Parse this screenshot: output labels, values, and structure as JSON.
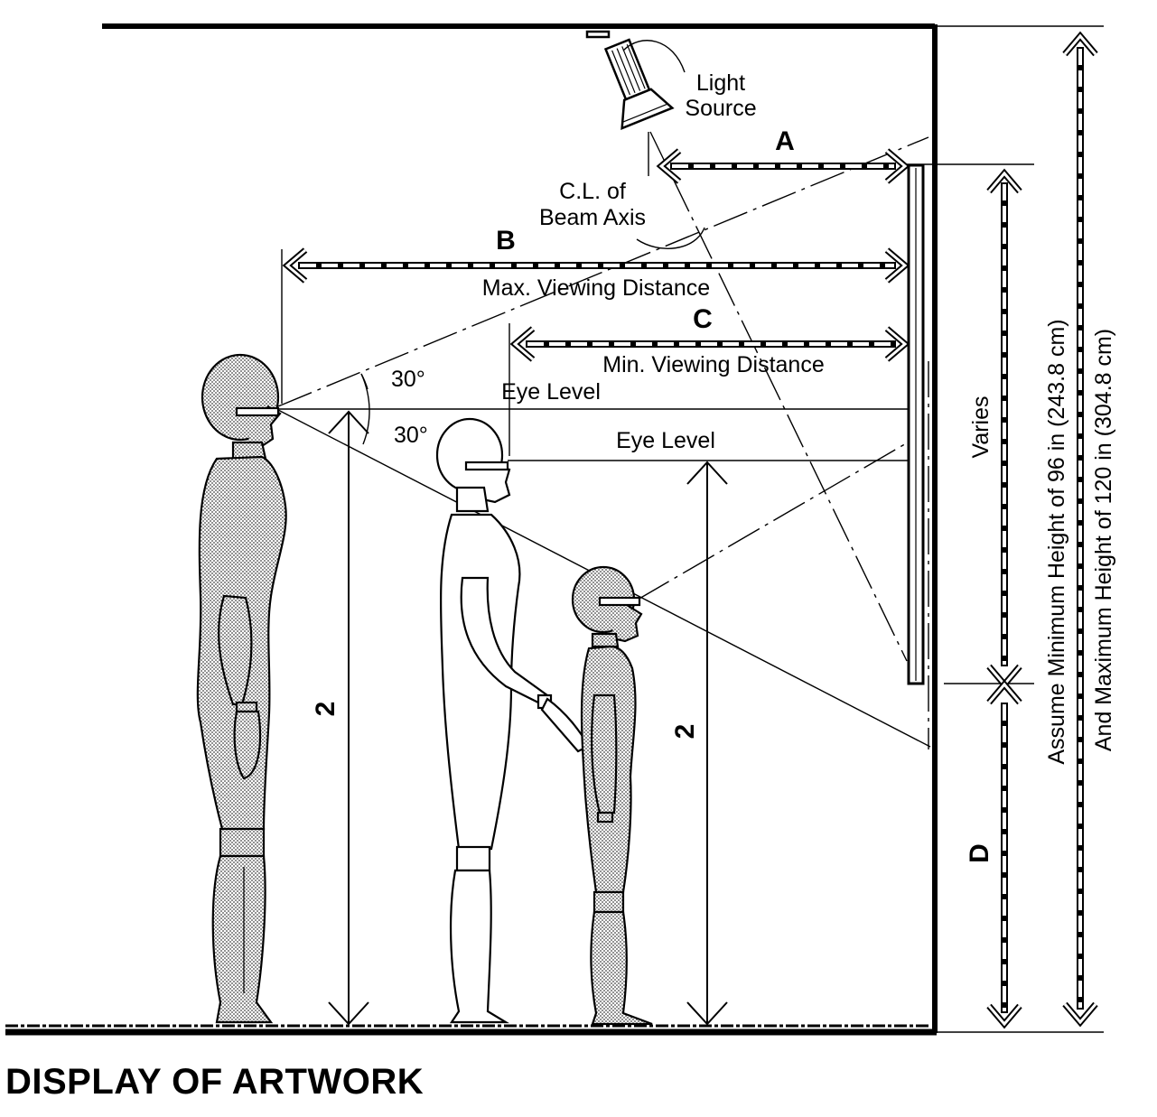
{
  "title": "DISPLAY OF ARTWORK",
  "labels": {
    "light_source_line1": "Light",
    "light_source_line2": "Source",
    "dim_a": "A",
    "dim_b": "B",
    "dim_c": "C",
    "dim_d": "D",
    "beam_axis_line1": "C.L. of",
    "beam_axis_line2": "Beam Axis",
    "max_viewing": "Max. Viewing Distance",
    "min_viewing": "Min. Viewing Distance",
    "eye_level_adult": "Eye Level",
    "eye_level_child": "Eye Level",
    "angle_up": "30°",
    "angle_down": "30°",
    "height_adult": "2",
    "height_child": "2",
    "varies": "Varies",
    "height_note_line1": "Assume Minimum Height of 96 in (243.8 cm)",
    "height_note_line2": "And Maximum Height of 120 in (304.8 cm)"
  },
  "colors": {
    "ink": "#000000",
    "paper": "#ffffff",
    "shade": "#c8c8c8"
  }
}
